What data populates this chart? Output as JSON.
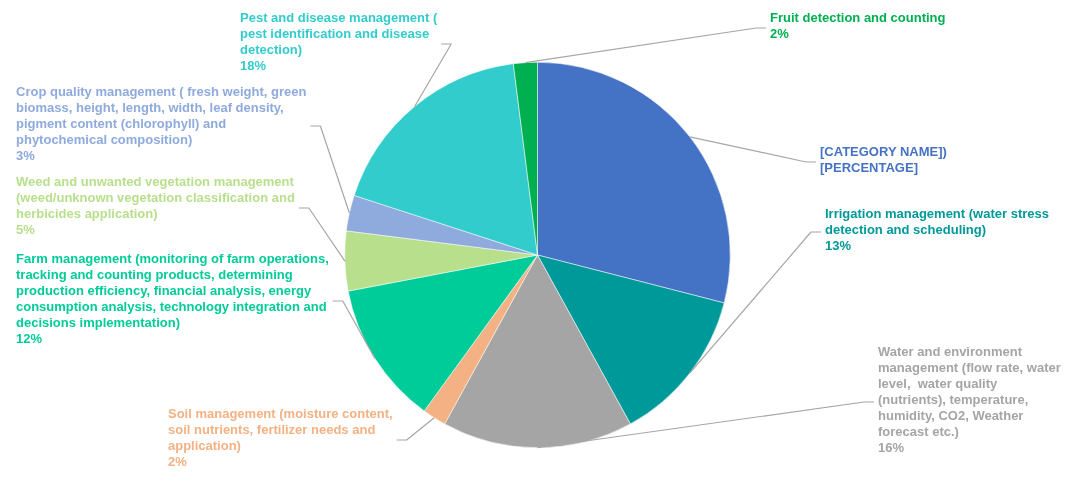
{
  "chart_data": {
    "type": "pie",
    "categories": [
      "[CATEGORY NAME])",
      "Irrigation management (water stress detection and scheduling)",
      "Water and environment management (flow rate, water level,  water quality (nutrients), temperature, humidity, CO2, Weather forecast etc.)",
      "Soil management (moisture content, soil nutrients, fertilizer needs and application)",
      "Farm management (monitoring of farm operations, tracking and counting products, determining production efficiency, financial analysis, energy consumption analysis, technology integration and decisions implementation)",
      "Weed and unwanted vegetation management (weed/unknown vegetation classification and herbicides application)",
      "Crop quality management ( fresh weight, green biomass, height, length, width, leaf density, pigment content (chlorophyll) and phytochemical composition)",
      "Pest and disease management ( pest identification and disease detection)",
      "Fruit detection and counting"
    ],
    "values": [
      29,
      13,
      16,
      2,
      12,
      5,
      3,
      18,
      2
    ],
    "colors": [
      "#4472c4",
      "#009999",
      "#a5a5a5",
      "#f4b183",
      "#00cc99",
      "#b8df8c",
      "#8faadc",
      "#33cccc",
      "#00b050"
    ],
    "value_labels": [
      "[PERCENTAGE]",
      "13%",
      "16%",
      "2%",
      "12%",
      "5%",
      "3%",
      "18%",
      "2%"
    ]
  }
}
